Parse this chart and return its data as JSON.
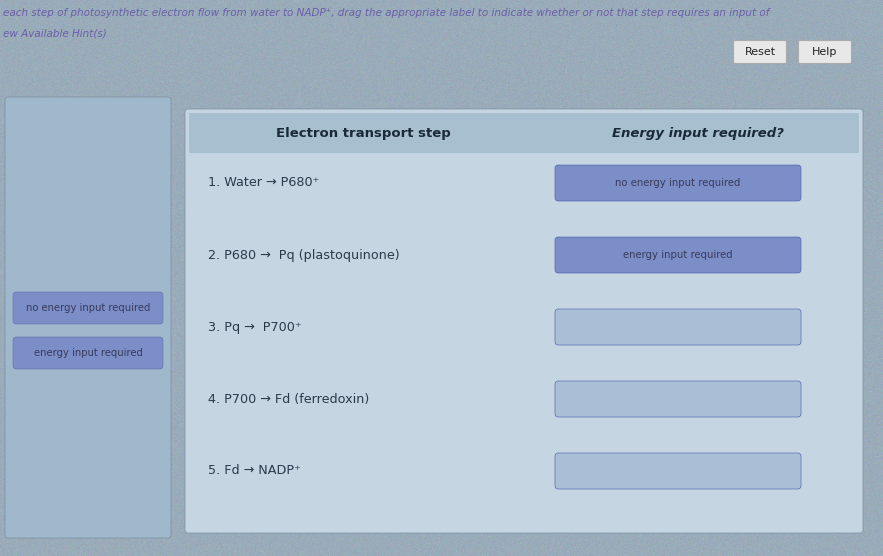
{
  "page_bg": "#9aacba",
  "header_text": "each step of photosynthetic electron flow from water to NADP⁺, drag the appropriate label to indicate whether or not that step requires an input of",
  "hint_text": "ew Available Hint(s)",
  "header_color": "#6b5ea8",
  "hint_color": "#6b5ea8",
  "reset_label": "Reset",
  "help_label": "Help",
  "table_header_bg": "#a8bfcf",
  "table_bg": "#c5d5e2",
  "left_panel_bg": "#9fb8cc",
  "col1_header": "Electron transport step",
  "col2_header": "Energy input required?",
  "steps": [
    "1. Water → P680⁺",
    "2. P680 →  Pq (plastoquinone)",
    "3. Pq →  P700⁺",
    "4. P700 → Fd (ferredoxin)",
    "5. Fd → NADP⁺"
  ],
  "answer_labels": [
    "no energy input required",
    "energy input required",
    "",
    "",
    ""
  ],
  "label_bg_filled": "#7b8ec8",
  "label_bg_empty": "#aabfd6",
  "label_text_color": "#3a3a5a",
  "side_labels": [
    "no energy input required",
    "energy input required"
  ],
  "side_label_bg": "#7b8ec8",
  "side_label_text": "#3a3a5a",
  "btn_bg": "#e8e8e8",
  "btn_edge": "#aaaaaa",
  "step_color": "#2a3a4a",
  "header_col_color": "#1a2a3a"
}
